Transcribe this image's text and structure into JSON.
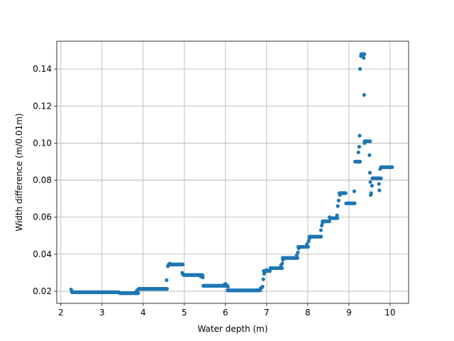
{
  "chart_data": {
    "type": "scatter",
    "title": "",
    "xlabel": "Water depth (m)",
    "ylabel": "Width difference (m/0.01m)",
    "xlim": [
      1.9,
      10.45
    ],
    "ylim": [
      0.0135,
      0.155
    ],
    "xticks": [
      2,
      3,
      4,
      5,
      6,
      7,
      8,
      9,
      10
    ],
    "yticks": [
      0.02,
      0.04,
      0.06,
      0.08,
      0.1,
      0.12,
      0.14
    ],
    "xtick_labels": [
      "2",
      "3",
      "4",
      "5",
      "6",
      "7",
      "8",
      "9",
      "10"
    ],
    "ytick_labels": [
      "0.02",
      "0.04",
      "0.06",
      "0.08",
      "0.10",
      "0.12",
      "0.14"
    ],
    "grid": true,
    "marker_color": "#1f77b4",
    "segments": [
      {
        "x0": 2.27,
        "x1": 3.42,
        "y": 0.0195,
        "step": 0.015
      },
      {
        "x0": 3.43,
        "x1": 3.88,
        "y": 0.019,
        "step": 0.015
      },
      {
        "x0": 3.89,
        "x1": 4.58,
        "y": 0.0213,
        "step": 0.015
      },
      {
        "x0": 4.62,
        "x1": 4.97,
        "y": 0.0345,
        "step": 0.015
      },
      {
        "x0": 4.99,
        "x1": 5.45,
        "y": 0.0288,
        "step": 0.015
      },
      {
        "x0": 5.46,
        "x1": 6.04,
        "y": 0.023,
        "step": 0.015
      },
      {
        "x0": 6.05,
        "x1": 6.85,
        "y": 0.0205,
        "step": 0.015
      },
      {
        "x0": 6.93,
        "x1": 7.08,
        "y": 0.031,
        "step": 0.015
      },
      {
        "x0": 7.09,
        "x1": 7.38,
        "y": 0.0325,
        "step": 0.015
      },
      {
        "x0": 7.39,
        "x1": 7.75,
        "y": 0.038,
        "step": 0.015
      },
      {
        "x0": 7.77,
        "x1": 8.02,
        "y": 0.044,
        "step": 0.015
      },
      {
        "x0": 8.04,
        "x1": 8.33,
        "y": 0.0495,
        "step": 0.015
      },
      {
        "x0": 8.36,
        "x1": 8.53,
        "y": 0.0578,
        "step": 0.015
      },
      {
        "x0": 8.54,
        "x1": 8.73,
        "y": 0.0595,
        "step": 0.015
      },
      {
        "x0": 8.77,
        "x1": 8.93,
        "y": 0.073,
        "step": 0.015
      },
      {
        "x0": 8.93,
        "x1": 9.15,
        "y": 0.0675,
        "step": 0.015
      },
      {
        "x0": 9.15,
        "x1": 9.28,
        "y": 0.09,
        "step": 0.015
      },
      {
        "x0": 9.3,
        "x1": 9.38,
        "y": 0.148,
        "step": 0.015
      },
      {
        "x0": 9.38,
        "x1": 9.52,
        "y": 0.101,
        "step": 0.015
      },
      {
        "x0": 9.57,
        "x1": 9.78,
        "y": 0.081,
        "step": 0.015
      },
      {
        "x0": 9.78,
        "x1": 10.05,
        "y": 0.087,
        "step": 0.015
      }
    ],
    "points": [
      [
        2.25,
        0.021
      ],
      [
        2.27,
        0.02
      ],
      [
        3.82,
        0.0195
      ],
      [
        3.85,
        0.0205
      ],
      [
        4.57,
        0.026
      ],
      [
        4.6,
        0.0335
      ],
      [
        4.65,
        0.035
      ],
      [
        4.95,
        0.03
      ],
      [
        4.97,
        0.029
      ],
      [
        5.4,
        0.028
      ],
      [
        5.45,
        0.0275
      ],
      [
        5.96,
        0.0235
      ],
      [
        6.0,
        0.024
      ],
      [
        6.04,
        0.0232
      ],
      [
        6.06,
        0.0225
      ],
      [
        6.85,
        0.0215
      ],
      [
        6.88,
        0.022
      ],
      [
        6.9,
        0.0225
      ],
      [
        6.92,
        0.0265
      ],
      [
        6.94,
        0.0295
      ],
      [
        6.96,
        0.0305
      ],
      [
        7.0,
        0.0315
      ],
      [
        7.35,
        0.034
      ],
      [
        7.38,
        0.035
      ],
      [
        7.4,
        0.037
      ],
      [
        7.73,
        0.0395
      ],
      [
        7.76,
        0.041
      ],
      [
        7.78,
        0.0432
      ],
      [
        7.98,
        0.0455
      ],
      [
        8.02,
        0.047
      ],
      [
        8.04,
        0.0485
      ],
      [
        8.32,
        0.053
      ],
      [
        8.34,
        0.0555
      ],
      [
        8.36,
        0.057
      ],
      [
        8.53,
        0.06
      ],
      [
        8.71,
        0.061
      ],
      [
        8.73,
        0.066
      ],
      [
        8.75,
        0.069
      ],
      [
        8.78,
        0.072
      ],
      [
        9.13,
        0.074
      ],
      [
        9.16,
        0.09
      ],
      [
        9.23,
        0.095
      ],
      [
        9.25,
        0.098
      ],
      [
        9.26,
        0.104
      ],
      [
        9.27,
        0.14
      ],
      [
        9.29,
        0.147
      ],
      [
        9.35,
        0.148
      ],
      [
        9.36,
        0.146
      ],
      [
        9.37,
        0.126
      ],
      [
        9.38,
        0.1
      ],
      [
        9.5,
        0.0935
      ],
      [
        9.51,
        0.084
      ],
      [
        9.52,
        0.079
      ],
      [
        9.53,
        0.072
      ],
      [
        9.54,
        0.073
      ],
      [
        9.56,
        0.077
      ],
      [
        9.73,
        0.078
      ],
      [
        9.74,
        0.0745
      ],
      [
        9.76,
        0.086
      ]
    ]
  }
}
